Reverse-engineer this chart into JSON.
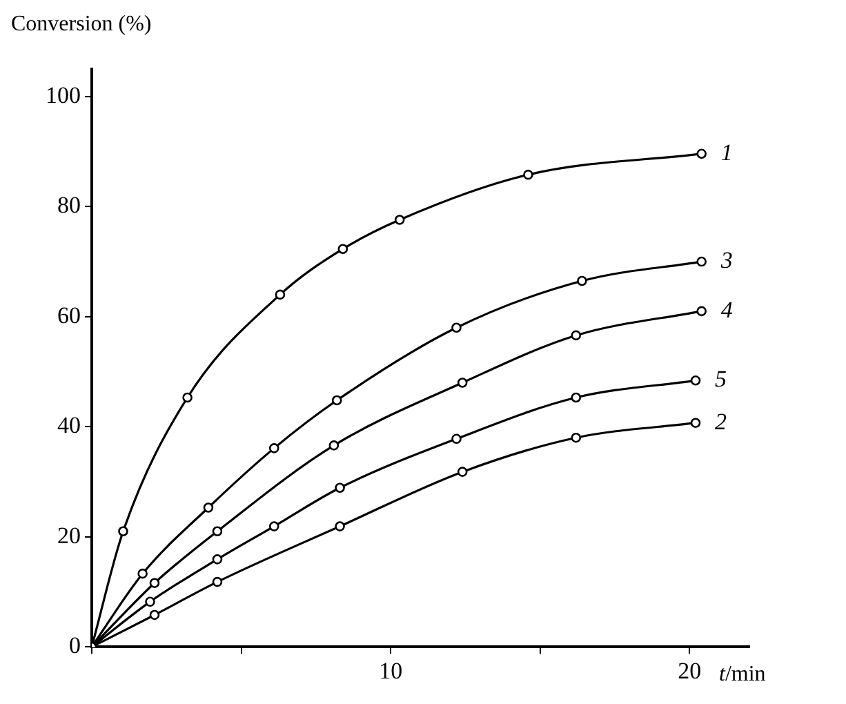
{
  "chart_data": {
    "type": "line",
    "ylabel": "Conversion (%)",
    "xlabel": "t/min",
    "xlim": [
      0,
      22
    ],
    "ylim": [
      0,
      105
    ],
    "xticks": [
      {
        "value": 0,
        "label": null
      },
      {
        "value": 5,
        "label": null
      },
      10,
      {
        "value": 15,
        "label": null
      },
      20
    ],
    "yticks": [
      0,
      20,
      40,
      60,
      80,
      100
    ],
    "grid": false,
    "legend": false,
    "marker": "circle",
    "line_style": "solid",
    "series": [
      {
        "name": "1",
        "color": "#000000",
        "x": [
          0,
          1.05,
          3.2,
          6.3,
          8.4,
          10.3,
          14.6,
          20.4
        ],
        "values": [
          0,
          21,
          45.3,
          64,
          72.3,
          77.6,
          85.8,
          89.6
        ]
      },
      {
        "name": "3",
        "color": "#000000",
        "x": [
          0,
          1.7,
          3.9,
          6.1,
          8.2,
          12.2,
          16.4,
          20.4
        ],
        "values": [
          0,
          13.3,
          25.3,
          36.1,
          44.8,
          58,
          66.5,
          70
        ]
      },
      {
        "name": "4",
        "color": "#000000",
        "x": [
          0,
          2.1,
          4.2,
          8.1,
          12.4,
          16.2,
          20.4
        ],
        "values": [
          0,
          11.6,
          21,
          36.6,
          48,
          56.6,
          61
        ]
      },
      {
        "name": "5",
        "color": "#000000",
        "x": [
          0,
          1.95,
          4.2,
          6.1,
          8.3,
          12.2,
          16.2,
          20.2
        ],
        "values": [
          0,
          8.2,
          15.9,
          21.9,
          28.9,
          37.8,
          45.3,
          48.4
        ]
      },
      {
        "name": "2",
        "color": "#000000",
        "x": [
          0,
          2.1,
          4.2,
          8.3,
          12.4,
          16.2,
          20.2
        ],
        "values": [
          0,
          5.8,
          11.8,
          21.9,
          31.8,
          38,
          40.7
        ]
      }
    ]
  }
}
